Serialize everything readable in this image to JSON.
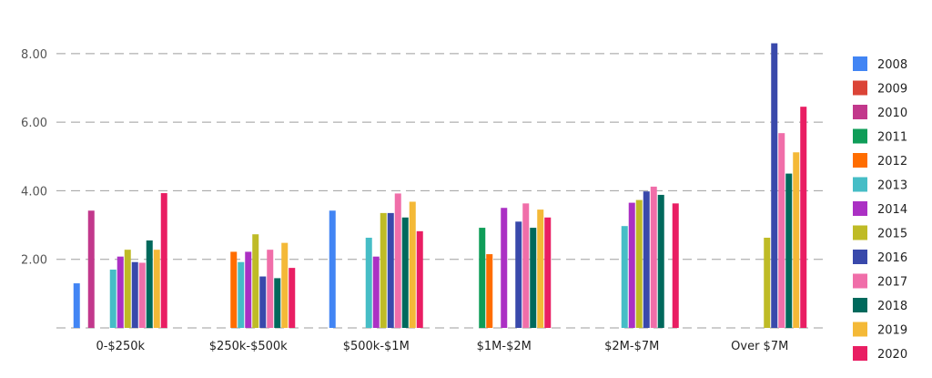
{
  "chart_data": {
    "type": "bar",
    "categories": [
      "0-$250k",
      "$250k-$500k",
      "$500k-$1M",
      "$1M-$2M",
      "$2M-$7M",
      "Over $7M"
    ],
    "ylim": [
      0,
      8.5
    ],
    "y_ticks": [
      "2.00",
      "4.00",
      "6.00",
      "8.00"
    ],
    "y_tick_values": [
      2,
      4,
      6,
      8
    ],
    "grid": true,
    "legend_position": "right",
    "series": [
      {
        "name": "2008",
        "color": "#4285f4",
        "values": [
          1.3,
          null,
          3.42,
          null,
          null,
          null
        ]
      },
      {
        "name": "2009",
        "color": "#db4437",
        "values": [
          null,
          null,
          null,
          null,
          null,
          null
        ]
      },
      {
        "name": "2010",
        "color": "#c2388c",
        "values": [
          3.42,
          null,
          null,
          null,
          null,
          null
        ]
      },
      {
        "name": "2011",
        "color": "#0f9d58",
        "values": [
          null,
          null,
          null,
          2.92,
          null,
          null
        ]
      },
      {
        "name": "2012",
        "color": "#ff6d00",
        "values": [
          null,
          2.22,
          null,
          2.15,
          null,
          null
        ]
      },
      {
        "name": "2013",
        "color": "#46bdc6",
        "values": [
          1.7,
          1.92,
          2.63,
          null,
          2.97,
          null
        ]
      },
      {
        "name": "2014",
        "color": "#ab30c4",
        "values": [
          2.08,
          2.22,
          2.08,
          3.5,
          3.65,
          null
        ]
      },
      {
        "name": "2015",
        "color": "#bfbb26",
        "values": [
          2.28,
          2.73,
          3.35,
          null,
          3.73,
          2.63
        ]
      },
      {
        "name": "2016",
        "color": "#3949ab",
        "values": [
          1.92,
          1.5,
          3.35,
          3.1,
          3.98,
          8.3
        ]
      },
      {
        "name": "2017",
        "color": "#f06ea9",
        "values": [
          1.9,
          2.28,
          3.92,
          3.63,
          4.12,
          5.68
        ]
      },
      {
        "name": "2018",
        "color": "#00695c",
        "values": [
          2.55,
          1.45,
          3.22,
          2.92,
          3.88,
          4.5
        ]
      },
      {
        "name": "2019",
        "color": "#f4b937",
        "values": [
          2.28,
          2.48,
          3.68,
          3.45,
          null,
          5.12
        ]
      },
      {
        "name": "2020",
        "color": "#e91e63",
        "values": [
          3.93,
          1.75,
          2.82,
          3.22,
          3.63,
          6.45
        ]
      }
    ]
  }
}
